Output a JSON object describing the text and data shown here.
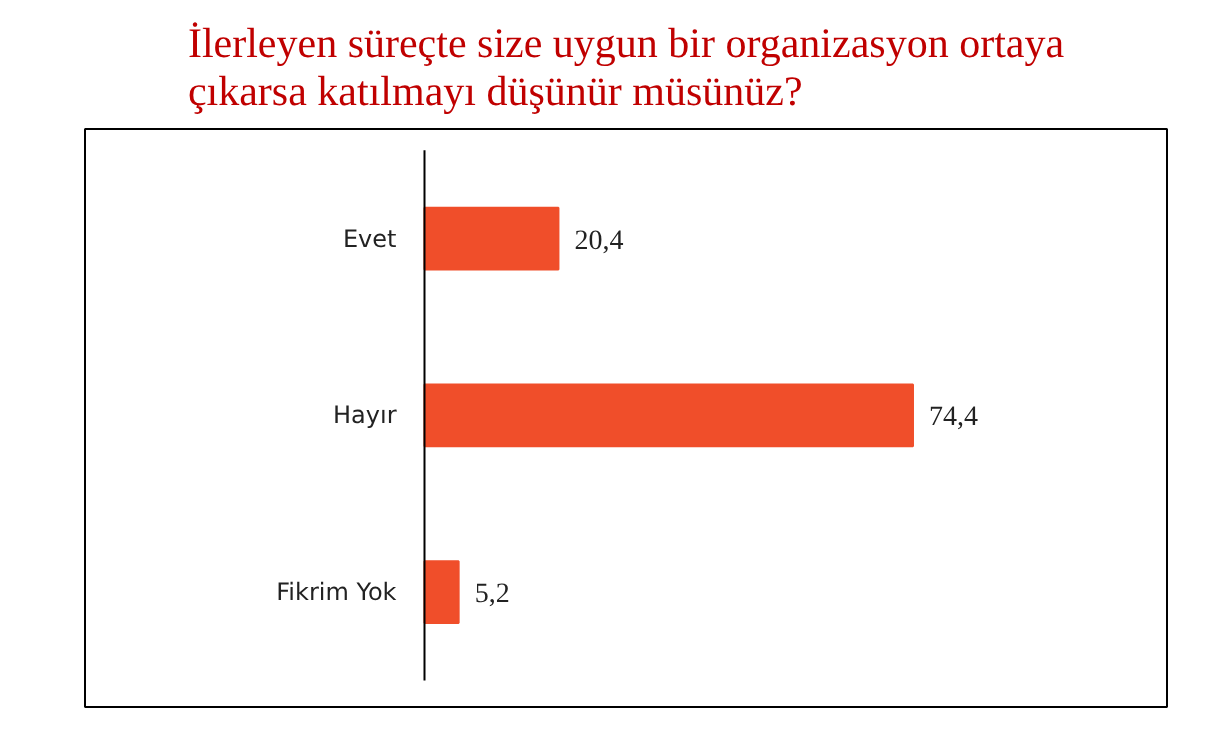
{
  "chart_data": {
    "type": "bar",
    "orientation": "horizontal",
    "title": "İlerleyen süreçte size uygun bir organizasyon ortaya\nçıkarsa katılmayı düşünür müsünüz?",
    "categories": [
      "Evet",
      "Hayır",
      "Fikrim Yok"
    ],
    "values": [
      20.4,
      74.4,
      5.2
    ],
    "color": "#f04e2a",
    "value_labels": [
      "20,4",
      "74,4",
      "5,2"
    ],
    "grid": false
  }
}
